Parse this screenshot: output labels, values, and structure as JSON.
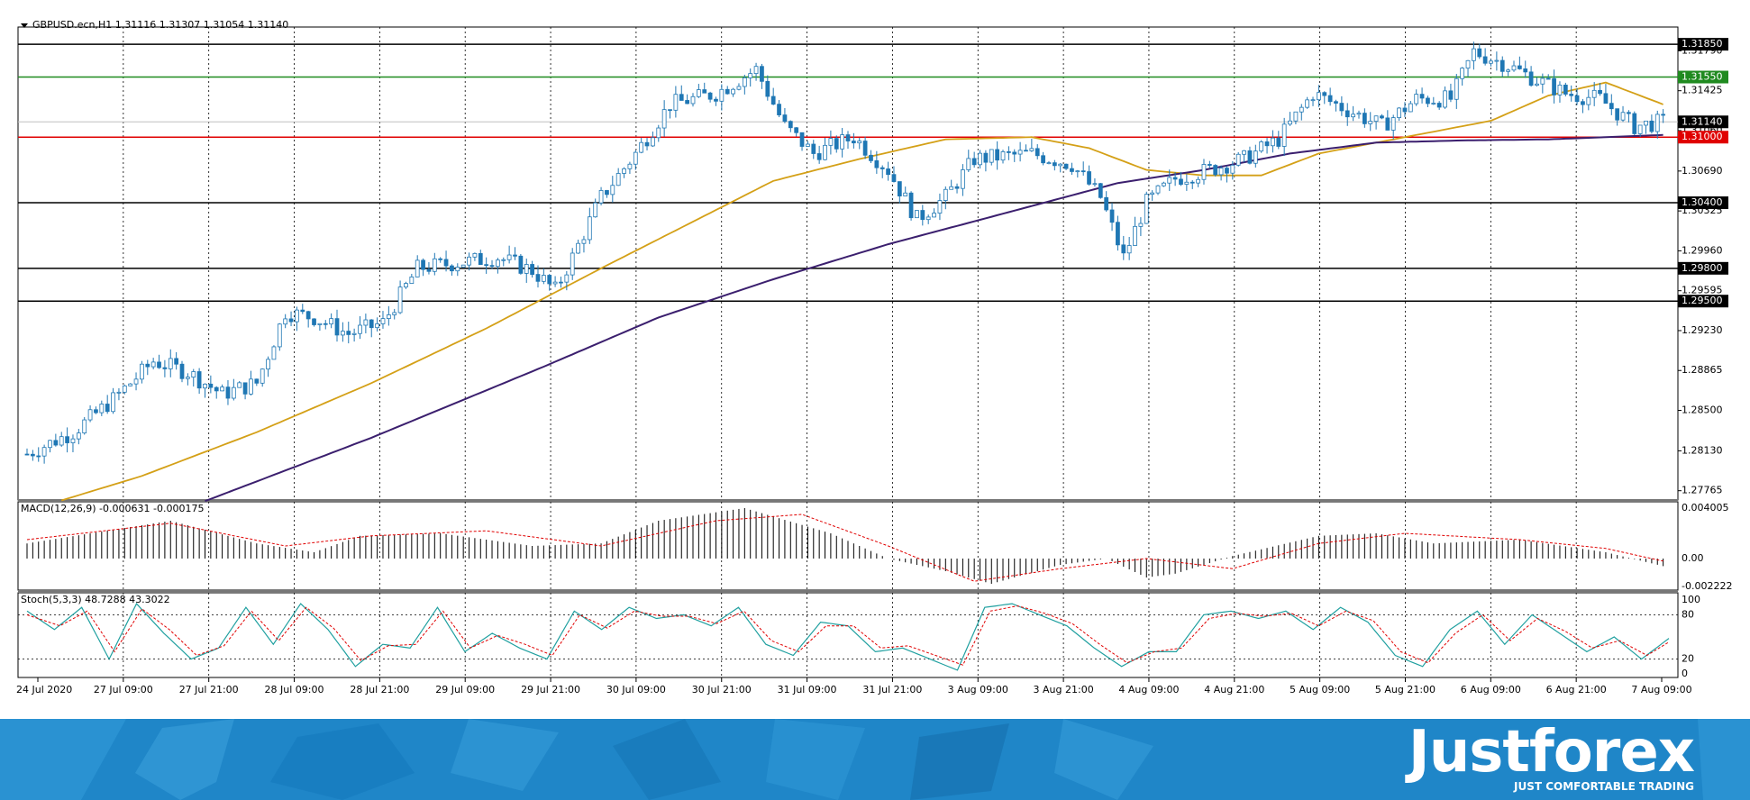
{
  "header": {
    "symbol_line": "GBPUSD.ecn,H1  1.31116 1.31307 1.31054 1.31140"
  },
  "indicator_labels": {
    "macd": "MACD(12,26,9) -0.000631 -0.000175",
    "stoch": "Stoch(5,3,3) 48.7288 43.3022"
  },
  "branding": {
    "name": "Justforex",
    "tagline": "JUST COMFORTABLE TRADING"
  },
  "colors": {
    "background": "#ffffff",
    "candle_bull": "#ffffff",
    "candle_bear": "#1f77b4",
    "candle_outline": "#1f77b4",
    "ma_fast": "#d4a017",
    "ma_slow": "#3b1f6e",
    "resistance_line": "#000000",
    "support_green": "#1f8a1f",
    "support_red": "#e00000",
    "macd_hist": "#000000",
    "macd_signal": "#e00000",
    "stoch_main": "#20a0a0",
    "stoch_signal": "#e00000",
    "footer_bg": "#1f86c8"
  },
  "chart_data": {
    "type": "candlestick",
    "symbol": "GBPUSD.ecn",
    "timeframe": "H1",
    "ohlc_last": {
      "open": 1.31116,
      "high": 1.31307,
      "low": 1.31054,
      "close": 1.3114
    },
    "price_axis_ticks": [
      "1.31790",
      "1.31425",
      "1.31060",
      "1.30690",
      "1.30325",
      "1.29960",
      "1.29595",
      "1.29230",
      "1.28865",
      "1.28500",
      "1.28130",
      "1.27765"
    ],
    "time_axis_labels": [
      "24 Jul 2020",
      "27 Jul 09:00",
      "27 Jul 21:00",
      "28 Jul 09:00",
      "28 Jul 21:00",
      "29 Jul 09:00",
      "29 Jul 21:00",
      "30 Jul 09:00",
      "30 Jul 21:00",
      "31 Jul 09:00",
      "31 Jul 21:00",
      "3 Aug 09:00",
      "3 Aug 21:00",
      "4 Aug 09:00",
      "4 Aug 21:00",
      "5 Aug 09:00",
      "5 Aug 21:00",
      "6 Aug 09:00",
      "6 Aug 21:00",
      "7 Aug 09:00"
    ],
    "ylim": [
      1.2768,
      1.3195
    ],
    "horizontal_levels": [
      {
        "price": 1.3185,
        "label": "1.31850",
        "color": "#000000"
      },
      {
        "price": 1.3155,
        "label": "1.31550",
        "color": "#1f8a1f"
      },
      {
        "price": 1.3114,
        "label": "1.31140",
        "color": "#c0c0c0"
      },
      {
        "price": 1.31,
        "label": "1.31000",
        "color": "#e00000"
      },
      {
        "price": 1.304,
        "label": "1.30400",
        "color": "#000000"
      },
      {
        "price": 1.298,
        "label": "1.29800",
        "color": "#000000"
      },
      {
        "price": 1.295,
        "label": "1.29500",
        "color": "#000000"
      }
    ],
    "close_anchors": [
      [
        0,
        1.281
      ],
      [
        8,
        1.283
      ],
      [
        15,
        1.286
      ],
      [
        22,
        1.2895
      ],
      [
        28,
        1.2885
      ],
      [
        34,
        1.2865
      ],
      [
        40,
        1.2875
      ],
      [
        45,
        1.294
      ],
      [
        50,
        1.2935
      ],
      [
        56,
        1.292
      ],
      [
        62,
        1.293
      ],
      [
        68,
        1.298
      ],
      [
        75,
        1.2985
      ],
      [
        82,
        1.299
      ],
      [
        88,
        1.2978
      ],
      [
        92,
        1.296
      ],
      [
        95,
        1.299
      ],
      [
        100,
        1.3045
      ],
      [
        106,
        1.3085
      ],
      [
        112,
        1.313
      ],
      [
        120,
        1.314
      ],
      [
        127,
        1.3162
      ],
      [
        132,
        1.311
      ],
      [
        137,
        1.3085
      ],
      [
        144,
        1.31
      ],
      [
        150,
        1.307
      ],
      [
        155,
        1.3025
      ],
      [
        160,
        1.3045
      ],
      [
        165,
        1.308
      ],
      [
        175,
        1.3085
      ],
      [
        182,
        1.3075
      ],
      [
        187,
        1.3045
      ],
      [
        191,
        1.299
      ],
      [
        195,
        1.304
      ],
      [
        200,
        1.3062
      ],
      [
        206,
        1.307
      ],
      [
        212,
        1.308
      ],
      [
        218,
        1.3098
      ],
      [
        224,
        1.314
      ],
      [
        230,
        1.3125
      ],
      [
        236,
        1.311
      ],
      [
        242,
        1.3135
      ],
      [
        248,
        1.3135
      ],
      [
        252,
        1.3178
      ],
      [
        257,
        1.3168
      ],
      [
        262,
        1.3155
      ],
      [
        268,
        1.314
      ],
      [
        274,
        1.3135
      ],
      [
        280,
        1.311
      ],
      [
        285,
        1.3114
      ]
    ],
    "ma_fast": [
      [
        0,
        1.2758
      ],
      [
        20,
        1.279
      ],
      [
        40,
        1.283
      ],
      [
        60,
        1.2875
      ],
      [
        80,
        1.2925
      ],
      [
        100,
        1.298
      ],
      [
        115,
        1.302
      ],
      [
        130,
        1.306
      ],
      [
        145,
        1.308
      ],
      [
        160,
        1.3098
      ],
      [
        175,
        1.31
      ],
      [
        185,
        1.309
      ],
      [
        195,
        1.307
      ],
      [
        205,
        1.3065
      ],
      [
        215,
        1.3065
      ],
      [
        225,
        1.3085
      ],
      [
        240,
        1.31
      ],
      [
        255,
        1.3115
      ],
      [
        265,
        1.3138
      ],
      [
        275,
        1.315
      ],
      [
        285,
        1.313
      ]
    ],
    "ma_slow": [
      [
        0,
        1.2705
      ],
      [
        30,
        1.2765
      ],
      [
        60,
        1.2825
      ],
      [
        90,
        1.289
      ],
      [
        110,
        1.2935
      ],
      [
        130,
        1.297
      ],
      [
        150,
        1.3002
      ],
      [
        170,
        1.303
      ],
      [
        190,
        1.3058
      ],
      [
        205,
        1.307
      ],
      [
        220,
        1.3085
      ],
      [
        235,
        1.3095
      ],
      [
        250,
        1.3097
      ],
      [
        265,
        1.3098
      ],
      [
        285,
        1.3102
      ]
    ],
    "macd": {
      "ylim": [
        -0.0025,
        0.0045
      ],
      "ticks": [
        "0.004005",
        "0.00",
        "-0.002222"
      ],
      "hist_anchors": [
        [
          0,
          0.0012
        ],
        [
          25,
          0.003
        ],
        [
          40,
          0.0012
        ],
        [
          50,
          0.0005
        ],
        [
          58,
          0.0018
        ],
        [
          72,
          0.002
        ],
        [
          88,
          0.001
        ],
        [
          100,
          0.0012
        ],
        [
          110,
          0.003
        ],
        [
          125,
          0.004
        ],
        [
          140,
          0.002
        ],
        [
          150,
          0.0
        ],
        [
          160,
          -0.001
        ],
        [
          168,
          -0.002
        ],
        [
          180,
          -0.0005
        ],
        [
          188,
          0.0
        ],
        [
          195,
          -0.0015
        ],
        [
          200,
          -0.0012
        ],
        [
          210,
          0.0002
        ],
        [
          225,
          0.0018
        ],
        [
          235,
          0.002
        ],
        [
          245,
          0.0012
        ],
        [
          260,
          0.0015
        ],
        [
          275,
          0.0005
        ],
        [
          285,
          -0.0006
        ]
      ],
      "signal_anchors": [
        [
          0,
          0.0015
        ],
        [
          25,
          0.0028
        ],
        [
          45,
          0.001
        ],
        [
          60,
          0.0018
        ],
        [
          80,
          0.0022
        ],
        [
          100,
          0.001
        ],
        [
          120,
          0.003
        ],
        [
          135,
          0.0035
        ],
        [
          150,
          0.001
        ],
        [
          165,
          -0.0018
        ],
        [
          180,
          -0.0008
        ],
        [
          195,
          0.0
        ],
        [
          210,
          -0.0008
        ],
        [
          225,
          0.0012
        ],
        [
          240,
          0.002
        ],
        [
          260,
          0.0015
        ],
        [
          275,
          0.0008
        ],
        [
          285,
          -0.0002
        ]
      ]
    },
    "stoch": {
      "ylim": [
        0,
        100
      ],
      "ticks": [
        "100",
        "80",
        "20",
        "0"
      ],
      "levels": [
        80,
        20
      ],
      "main_anchors": [
        [
          0,
          85
        ],
        [
          5,
          60
        ],
        [
          10,
          90
        ],
        [
          15,
          20
        ],
        [
          20,
          95
        ],
        [
          25,
          55
        ],
        [
          30,
          20
        ],
        [
          35,
          35
        ],
        [
          40,
          90
        ],
        [
          45,
          40
        ],
        [
          50,
          95
        ],
        [
          55,
          60
        ],
        [
          60,
          10
        ],
        [
          65,
          40
        ],
        [
          70,
          35
        ],
        [
          75,
          90
        ],
        [
          80,
          30
        ],
        [
          85,
          55
        ],
        [
          90,
          35
        ],
        [
          95,
          20
        ],
        [
          100,
          85
        ],
        [
          105,
          60
        ],
        [
          110,
          90
        ],
        [
          115,
          75
        ],
        [
          120,
          80
        ],
        [
          125,
          65
        ],
        [
          130,
          90
        ],
        [
          135,
          40
        ],
        [
          140,
          25
        ],
        [
          145,
          70
        ],
        [
          150,
          65
        ],
        [
          155,
          30
        ],
        [
          160,
          35
        ],
        [
          165,
          20
        ],
        [
          170,
          5
        ],
        [
          175,
          90
        ],
        [
          180,
          95
        ],
        [
          185,
          80
        ],
        [
          190,
          65
        ],
        [
          195,
          35
        ],
        [
          200,
          10
        ],
        [
          205,
          30
        ],
        [
          210,
          30
        ],
        [
          215,
          80
        ],
        [
          220,
          85
        ],
        [
          225,
          75
        ],
        [
          230,
          85
        ],
        [
          235,
          60
        ],
        [
          240,
          90
        ],
        [
          245,
          70
        ],
        [
          250,
          25
        ],
        [
          255,
          10
        ],
        [
          260,
          60
        ],
        [
          265,
          85
        ],
        [
          270,
          40
        ],
        [
          275,
          80
        ],
        [
          280,
          55
        ],
        [
          285,
          30
        ],
        [
          290,
          50
        ],
        [
          295,
          20
        ],
        [
          300,
          48
        ]
      ],
      "signal_anchors": [
        [
          0,
          80
        ],
        [
          6,
          65
        ],
        [
          11,
          85
        ],
        [
          16,
          30
        ],
        [
          21,
          88
        ],
        [
          26,
          60
        ],
        [
          31,
          25
        ],
        [
          36,
          38
        ],
        [
          41,
          85
        ],
        [
          46,
          45
        ],
        [
          51,
          90
        ],
        [
          56,
          62
        ],
        [
          61,
          18
        ],
        [
          66,
          38
        ],
        [
          71,
          40
        ],
        [
          76,
          85
        ],
        [
          81,
          35
        ],
        [
          86,
          52
        ],
        [
          91,
          40
        ],
        [
          96,
          25
        ],
        [
          101,
          80
        ],
        [
          106,
          62
        ],
        [
          111,
          85
        ],
        [
          116,
          78
        ],
        [
          121,
          78
        ],
        [
          126,
          68
        ],
        [
          131,
          85
        ],
        [
          136,
          45
        ],
        [
          141,
          30
        ],
        [
          146,
          65
        ],
        [
          151,
          65
        ],
        [
          156,
          35
        ],
        [
          161,
          38
        ],
        [
          166,
          25
        ],
        [
          171,
          12
        ],
        [
          176,
          85
        ],
        [
          181,
          92
        ],
        [
          186,
          82
        ],
        [
          191,
          68
        ],
        [
          196,
          40
        ],
        [
          201,
          15
        ],
        [
          206,
          30
        ],
        [
          211,
          35
        ],
        [
          216,
          75
        ],
        [
          221,
          82
        ],
        [
          226,
          78
        ],
        [
          231,
          82
        ],
        [
          236,
          65
        ],
        [
          241,
          85
        ],
        [
          246,
          72
        ],
        [
          251,
          30
        ],
        [
          256,
          15
        ],
        [
          261,
          55
        ],
        [
          266,
          80
        ],
        [
          271,
          45
        ],
        [
          276,
          75
        ],
        [
          281,
          58
        ],
        [
          286,
          35
        ],
        [
          291,
          45
        ],
        [
          296,
          25
        ],
        [
          300,
          43
        ]
      ]
    }
  }
}
